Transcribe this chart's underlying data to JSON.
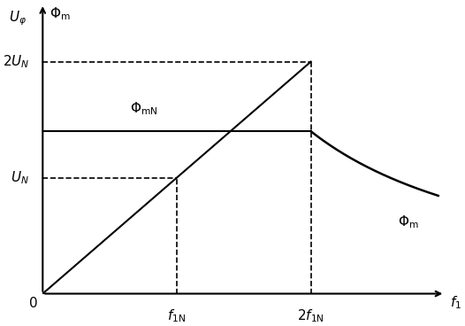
{
  "f1N": 1.0,
  "f2N": 2.0,
  "UN": 1.0,
  "2UN": 2.0,
  "PhimN": 1.4,
  "xlim": [
    0,
    3.0
  ],
  "ylim": [
    0,
    2.5
  ],
  "figsize": [
    5.26,
    3.68
  ],
  "dpi": 100,
  "bg_color": "#ffffff",
  "line_color": "#000000",
  "dashed_color": "#000000"
}
